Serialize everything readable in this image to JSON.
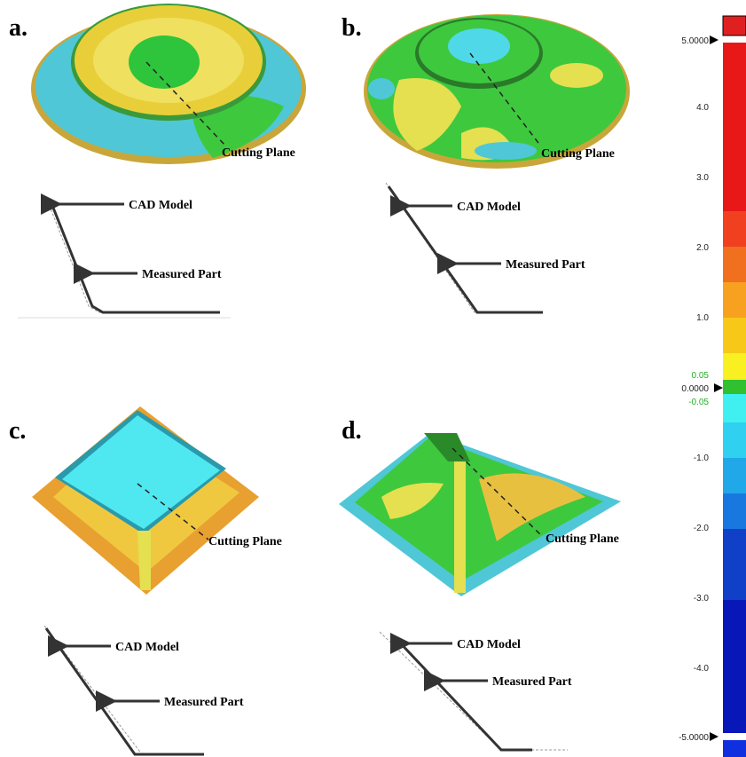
{
  "panels": [
    {
      "label": "a.",
      "cutting_plane": "Cutting Plane",
      "cad_model": "CAD Model",
      "measured_part": "Measured Part"
    },
    {
      "label": "b.",
      "cutting_plane": "Cutting Plane",
      "cad_model": "CAD Model",
      "measured_part": "Measured Part"
    },
    {
      "label": "c.",
      "cutting_plane": "Cutting Plane",
      "cad_model": "CAD Model",
      "measured_part": "Measured Part"
    },
    {
      "label": "d.",
      "cutting_plane": "Cutting Plane",
      "cad_model": "CAD Model",
      "measured_part": "Measured Part"
    }
  ],
  "color_scale": {
    "labels": [
      "5.0000",
      "4.0",
      "3.0",
      "2.0",
      "1.0",
      "0.05",
      "0.0000",
      "-0.05",
      "-1.0",
      "-2.0",
      "-3.0",
      "-4.0",
      "-5.0000"
    ]
  }
}
